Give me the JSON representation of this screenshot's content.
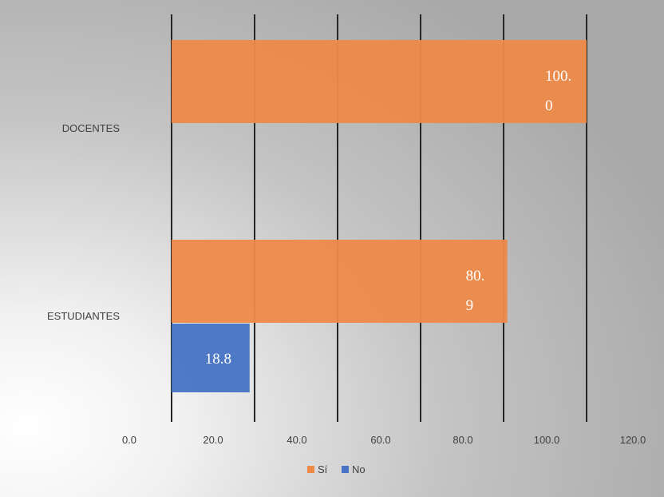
{
  "chart_data": {
    "type": "bar",
    "orientation": "horizontal",
    "categories": [
      "DOCENTES",
      "ESTUDIANTES"
    ],
    "series": [
      {
        "name": "Sí",
        "color": "#ed8a48",
        "values": [
          100.0,
          80.9
        ],
        "labels": [
          [
            "100.",
            "0"
          ],
          [
            "80.",
            "9"
          ]
        ]
      },
      {
        "name": "No",
        "color": "#4673c4",
        "values": [
          null,
          18.8
        ],
        "labels": [
          null,
          [
            "18.8"
          ]
        ]
      }
    ],
    "x_ticks": [
      "0.0",
      "20.0",
      "40.0",
      "60.0",
      "80.0",
      "100.0",
      "120.0"
    ],
    "xlim": [
      0,
      120
    ],
    "grid": true,
    "legend_position": "bottom"
  }
}
